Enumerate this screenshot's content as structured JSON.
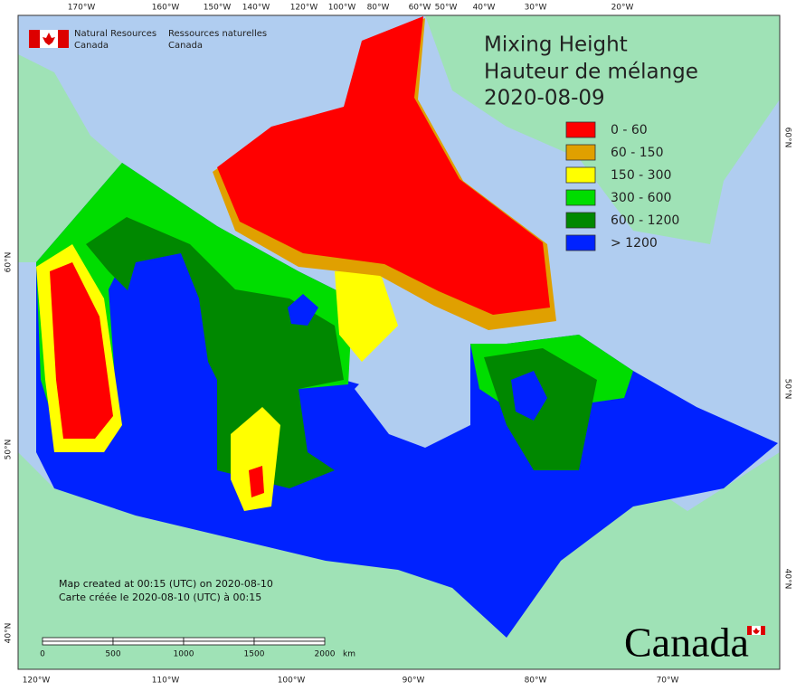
{
  "header": {
    "org_en": [
      "Natural Resources",
      "Canada"
    ],
    "org_fr": [
      "Ressources naturelles",
      "Canada"
    ]
  },
  "title": [
    "Mixing Height",
    "Hauteur de mélange",
    "2020-08-09"
  ],
  "legend": [
    {
      "label": "0 - 60",
      "color": "#ff0000"
    },
    {
      "label": "60 - 150",
      "color": "#e0a000"
    },
    {
      "label": "150 - 300",
      "color": "#ffff00"
    },
    {
      "label": "300 - 600",
      "color": "#00dd00"
    },
    {
      "label": "600 - 1200",
      "color": "#008800"
    },
    {
      "label": "> 1200",
      "color": "#0022ff"
    }
  ],
  "graticule": {
    "top": [
      "170°W",
      "160°W",
      "150°W",
      "140°W",
      "120°W",
      "100°W",
      "80°W",
      "60°W",
      "50°W",
      "40°W",
      "30°W",
      "20°W"
    ],
    "bottom": [
      "120°W",
      "110°W",
      "100°W",
      "90°W",
      "80°W",
      "70°W"
    ],
    "left": [
      "60°N",
      "50°N",
      "40°N"
    ],
    "right": [
      "60°N",
      "50°N",
      "40°N"
    ]
  },
  "footer": {
    "created_en": "Map created at 00:15 (UTC) on 2020-08-10",
    "created_fr": "Carte créée le 2020-08-10 (UTC) à 00:15"
  },
  "scale_bar": {
    "labels": [
      "0",
      "500",
      "1000",
      "1500",
      "2000"
    ],
    "unit": "km"
  },
  "wordmark": "Canada"
}
